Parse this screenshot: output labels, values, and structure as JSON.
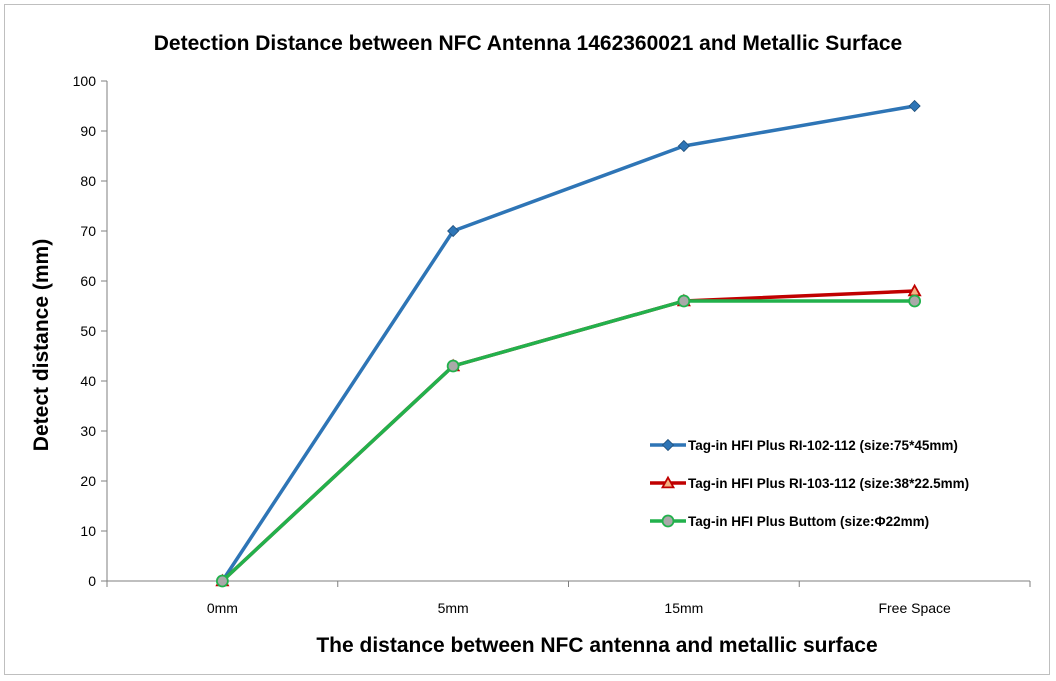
{
  "chart_data": {
    "type": "line",
    "title": "Detection Distance between NFC Antenna 1462360021 and Metallic Surface",
    "xlabel": "The distance between NFC antenna and metallic surface",
    "ylabel": "Detect distance (mm)",
    "categories": [
      "0mm",
      "5mm",
      "15mm",
      "Free Space"
    ],
    "ylim": [
      0,
      100
    ],
    "yticks": [
      0,
      10,
      20,
      30,
      40,
      50,
      60,
      70,
      80,
      90,
      100
    ],
    "grid": false,
    "legend_position": "bottom-right",
    "series": [
      {
        "name": "Tag-in HFI Plus RI-102-112 (size:75*45mm)",
        "values": [
          0,
          70,
          87,
          95
        ],
        "color": "#2e75b6",
        "marker": "diamond"
      },
      {
        "name": "Tag-in HFI Plus RI-103-112 (size:38*22.5mm)",
        "values": [
          0,
          43,
          56,
          58
        ],
        "color": "#c00000",
        "marker": "triangle"
      },
      {
        "name": "Tag-in HFI Plus Buttom (size:Φ22mm)",
        "values": [
          0,
          43,
          56,
          56
        ],
        "color": "#22b14c",
        "marker": "circle"
      }
    ]
  }
}
